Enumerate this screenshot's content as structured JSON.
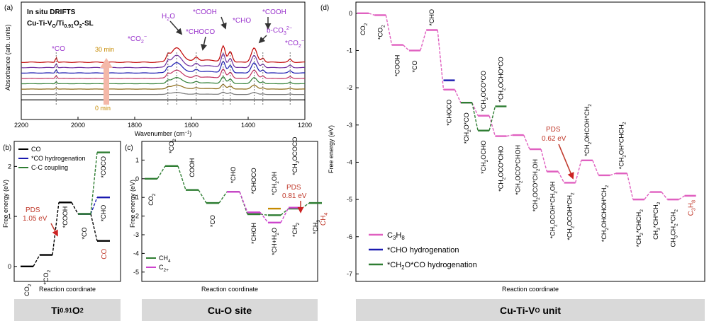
{
  "chart_data": [
    {
      "panel": "(a)",
      "type": "line",
      "title_lines": [
        "In situ DRIFTS",
        "Cu-Ti-V_O/Ti_0.91O_2-SL"
      ],
      "xlabel": "Wavenumber (cm⁻¹)",
      "ylabel": "Absorbance (arb. units)",
      "xlim": [
        2200,
        1200
      ],
      "x_ticks": [
        "2200",
        "2000",
        "1800",
        "1600",
        "1400",
        "1200"
      ],
      "time_labels": [
        "30 min",
        "0 min"
      ],
      "series_colors": [
        "#c00000",
        "#7030a0",
        "#1a1ab0",
        "#c03060",
        "#2e7d32",
        "#8b6914",
        "#777777",
        "#000000"
      ],
      "peaks": [
        {
          "label": "*CO",
          "x": 2077
        },
        {
          "label": "*CO₂⁻",
          "x": 1683
        },
        {
          "label": "H₂O",
          "x": 1652
        },
        {
          "label": "*CHOCO",
          "x": 1583
        },
        {
          "label": "*COOH",
          "x": 1488
        },
        {
          "label": "*CHO",
          "x": 1463
        },
        {
          "label": "*COOH",
          "x": 1379
        },
        {
          "label": "b-CO₃²⁻",
          "x": 1348
        },
        {
          "label": "*CO₂⁻",
          "x": 1252
        }
      ]
    },
    {
      "panel": "(b)",
      "type": "line",
      "xlabel": "Reaction coordinate",
      "ylabel": "Free energy (eV)",
      "ylim": [
        -0.3,
        2.5
      ],
      "y_ticks": [
        "0",
        "1",
        "2"
      ],
      "legend": [
        "CO",
        "*CO hydrogenation",
        "C-C coupling"
      ],
      "states": [
        "CO₂",
        "*CO₂",
        "*COOH",
        "*CO",
        "*CHO",
        "*COCO",
        "CO"
      ],
      "series": [
        {
          "name": "CO",
          "color": "#000000",
          "points": [
            [
              0,
              0
            ],
            [
              1,
              0.23
            ],
            [
              2,
              1.28
            ],
            [
              3,
              1.05
            ],
            [
              4,
              0.51
            ]
          ]
        },
        {
          "name": "*CO hydrogenation",
          "color": "#1a1ab0",
          "points": [
            [
              3,
              1.05
            ],
            [
              4,
              1.38
            ]
          ]
        },
        {
          "name": "C-C coupling",
          "color": "#2e7d32",
          "points": [
            [
              3,
              1.05
            ],
            [
              4,
              2.28
            ]
          ]
        }
      ],
      "pds": {
        "text": "PDS",
        "value": "1.05 eV"
      },
      "footer": "Ti0.91O2"
    },
    {
      "panel": "(c)",
      "type": "line",
      "xlabel": "Reaction coordinate",
      "ylabel": "Free energy (eV)",
      "ylim": [
        -5.5,
        2.0
      ],
      "y_ticks": [
        "1",
        "0",
        "-1",
        "-2",
        "-3",
        "-4",
        "-5"
      ],
      "legend": [
        "CH₄",
        "C₂₊"
      ],
      "series": [
        {
          "name": "shared",
          "color": "#2e7d32",
          "points": [
            [
              0,
              0.0
            ],
            [
              1,
              0.68
            ],
            [
              2,
              -0.6
            ],
            [
              3,
              -1.3
            ],
            [
              4,
              -0.7
            ],
            [
              5,
              -1.9
            ]
          ]
        },
        {
          "name": "CH₄",
          "color": "#2e7d32",
          "points": [
            [
              5,
              -1.9
            ],
            [
              6,
              -1.95
            ],
            [
              7,
              -1.6
            ],
            [
              8,
              -1.3
            ]
          ]
        },
        {
          "name": "C₂₊",
          "color": "#cc44cc",
          "points": [
            [
              4,
              -0.7
            ],
            [
              5,
              -1.8
            ],
            [
              6,
              -2.35
            ],
            [
              7,
              -1.55
            ]
          ]
        }
      ],
      "pds": {
        "text": "PDS",
        "value": "0.81 eV"
      },
      "footer": "Cu-O site"
    },
    {
      "panel": "(d)",
      "type": "line",
      "xlabel": "Reaction coordinate",
      "ylabel": "Free energy (eV)",
      "ylim": [
        -7.2,
        0.3
      ],
      "y_ticks": [
        "0",
        "-1",
        "-2",
        "-3",
        "-4",
        "-5",
        "-6",
        "-7"
      ],
      "legend": [
        "C₃H₈",
        "*CHO hydrogenation",
        "*CH₂O*CO hydrogenation"
      ],
      "series": [
        {
          "name": "C₃H₈",
          "color": "#e060c0",
          "points": [
            [
              0,
              0.0
            ],
            [
              1,
              -0.05
            ],
            [
              2,
              -0.85
            ],
            [
              3,
              -1.0
            ],
            [
              4,
              -0.45
            ],
            [
              5,
              -2.05
            ],
            [
              6,
              -2.4
            ],
            [
              7,
              -2.75
            ],
            [
              8,
              -3.3
            ],
            [
              9,
              -3.27
            ],
            [
              10,
              -3.65
            ],
            [
              11,
              -4.25
            ],
            [
              12,
              -4.55
            ],
            [
              13,
              -3.95
            ],
            [
              14,
              -4.35
            ],
            [
              15,
              -4.3
            ],
            [
              16,
              -5.0
            ],
            [
              17,
              -4.8
            ],
            [
              18,
              -5.0
            ],
            [
              19,
              -4.9
            ]
          ]
        },
        {
          "name": "*CHO hydrogenation",
          "color": "#1a1ab0",
          "points": [
            [
              5,
              -1.8
            ]
          ]
        },
        {
          "name": "*CH₂O*CO hydrogenation",
          "color": "#2e7d32",
          "points": [
            [
              6,
              -2.4
            ],
            [
              7,
              -3.15
            ],
            [
              8,
              -2.5
            ]
          ]
        }
      ],
      "pds": {
        "text": "PDS",
        "value": "0.62 eV"
      },
      "footer": "Cu-Ti-VO unit"
    }
  ]
}
